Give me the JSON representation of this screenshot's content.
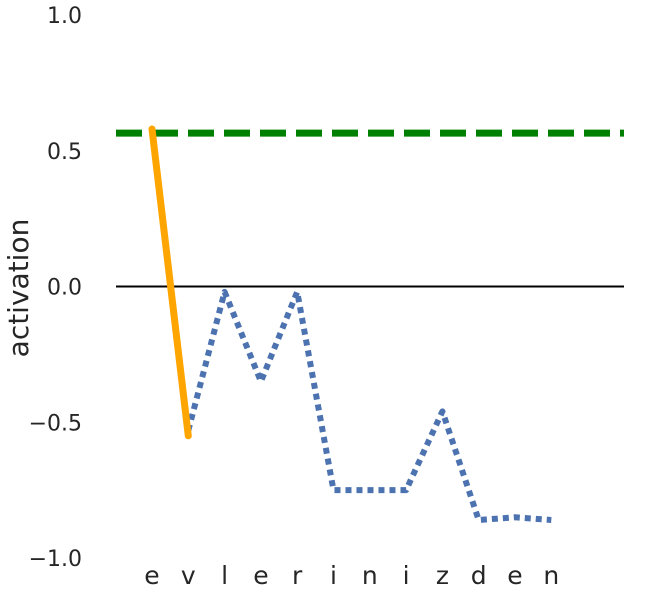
{
  "chart_data": {
    "type": "line",
    "ylabel": "activation",
    "xlabel": "",
    "ylim": [
      -1.0,
      1.0
    ],
    "yticks": [
      1.0,
      0.5,
      0.0,
      -0.5,
      -1.0
    ],
    "ytick_labels": [
      "1.0",
      "0.5",
      "0.0",
      "−0.5",
      "−1.0"
    ],
    "categories": [
      "e",
      "v",
      "l",
      "e",
      "r",
      "i",
      "n",
      "i",
      "z",
      "d",
      "e",
      "n"
    ],
    "grid": false,
    "series": [
      {
        "style": "dotted",
        "color": "#4c72b0",
        "values": [
          null,
          -0.53,
          -0.02,
          -0.35,
          -0.02,
          -0.75,
          -0.75,
          -0.75,
          -0.46,
          -0.86,
          -0.85,
          -0.86
        ]
      },
      {
        "style": "solid",
        "color": "#ffa500",
        "values": [
          0.58,
          -0.55,
          null,
          null,
          null,
          null,
          null,
          null,
          null,
          null,
          null,
          null
        ]
      }
    ],
    "reference_lines": [
      {
        "y": 0.0,
        "style": "solid",
        "color": "#000000"
      },
      {
        "y": 0.565,
        "style": "dashed",
        "color": "#008000"
      }
    ]
  }
}
